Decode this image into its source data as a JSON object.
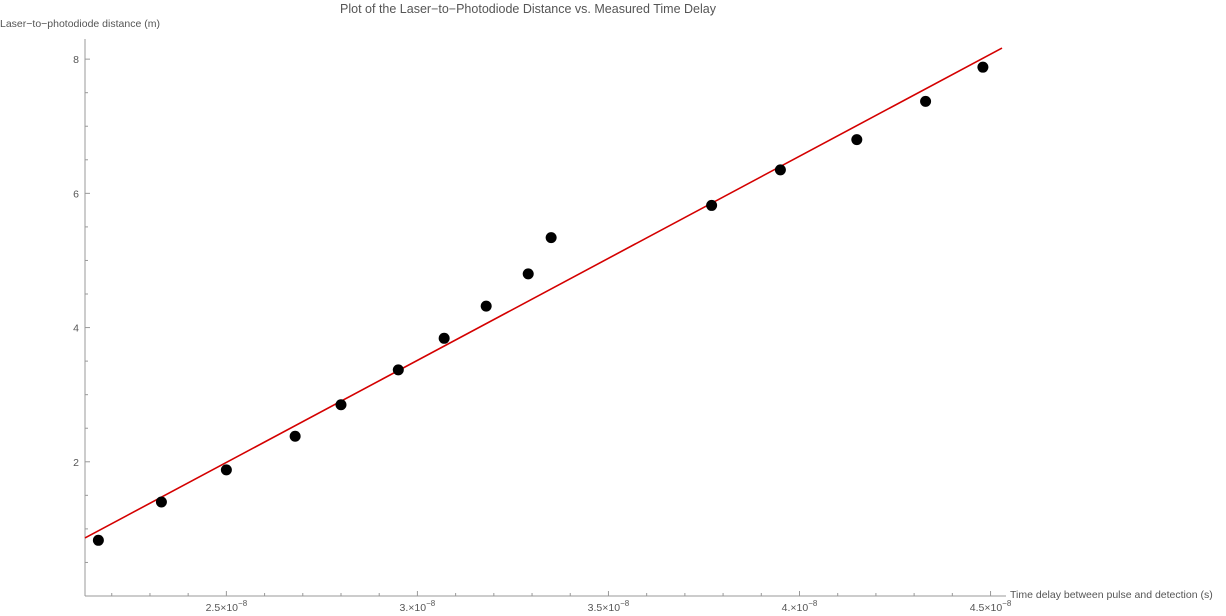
{
  "chart_data": {
    "type": "scatter",
    "title": "Plot of the Laser−to−Photodiode Distance vs. Measured Time Delay",
    "xlabel": "Time delay between pulse and detection (s)",
    "ylabel": "Laser−to−photodiode distance (m)",
    "xlim": [
      2.13e-08,
      4.53e-08
    ],
    "ylim": [
      0,
      8.3
    ],
    "grid": false,
    "legend": "none",
    "x_ticks": [
      {
        "value": 2.5e-08,
        "mantissa": "2.5",
        "exponent": "−8"
      },
      {
        "value": 3e-08,
        "mantissa": "3.",
        "exponent": "−8"
      },
      {
        "value": 3.5e-08,
        "mantissa": "3.5",
        "exponent": "−8"
      },
      {
        "value": 4e-08,
        "mantissa": "4.",
        "exponent": "−8"
      },
      {
        "value": 4.5e-08,
        "mantissa": "4.5",
        "exponent": "−8"
      }
    ],
    "y_ticks": [
      {
        "value": 2,
        "label": "2"
      },
      {
        "value": 4,
        "label": "4"
      },
      {
        "value": 6,
        "label": "6"
      },
      {
        "value": 8,
        "label": "8"
      }
    ],
    "series": [
      {
        "kind": "points",
        "color": "#000000",
        "x": [
          2.165e-08,
          2.33e-08,
          2.5e-08,
          2.68e-08,
          2.8e-08,
          2.95e-08,
          3.07e-08,
          3.18e-08,
          3.29e-08,
          3.35e-08,
          3.77e-08,
          3.95e-08,
          4.15e-08,
          4.33e-08,
          4.48e-08
        ],
        "y": [
          0.83,
          1.4,
          1.88,
          2.38,
          2.85,
          3.37,
          3.84,
          4.32,
          4.8,
          5.34,
          5.82,
          6.35,
          6.8,
          7.37,
          7.88
        ]
      },
      {
        "kind": "line",
        "color": "#d40000",
        "x": [
          2.13e-08,
          4.53e-08
        ],
        "y": [
          0.865,
          8.165
        ]
      }
    ]
  }
}
